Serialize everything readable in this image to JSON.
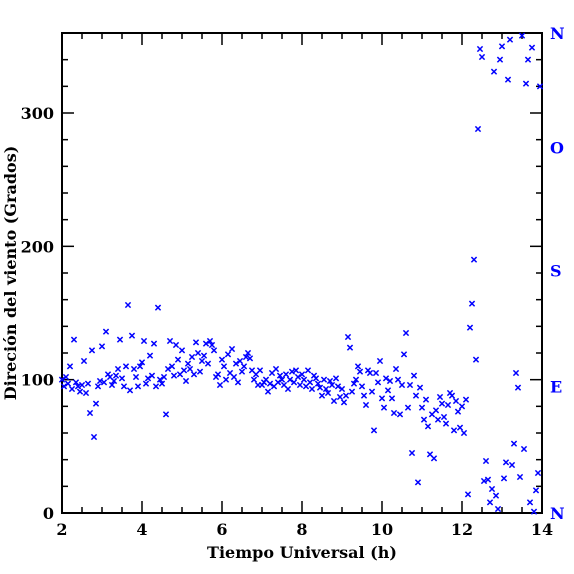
{
  "chart_data": {
    "type": "scatter",
    "xlabel": "Tiempo Universal (h)",
    "ylabel": "Direción del viento (Grados)",
    "xlim": [
      2,
      14
    ],
    "ylim": [
      0,
      360
    ],
    "x_ticks": [
      2,
      4,
      6,
      8,
      10,
      12,
      14
    ],
    "y_ticks": [
      0,
      100,
      200,
      300
    ],
    "x_tick_labels": [
      "2",
      "4",
      "6",
      "8",
      "10",
      "12",
      "14"
    ],
    "y_tick_labels": [
      "0",
      "100",
      "200",
      "300"
    ],
    "right_axis": {
      "labels": [
        {
          "text": "N",
          "value": 0
        },
        {
          "text": "E",
          "value": 95
        },
        {
          "text": "S",
          "value": 182
        },
        {
          "text": "O",
          "value": 274
        },
        {
          "text": "N",
          "value": 360
        }
      ]
    },
    "marker": "x",
    "marker_color": "#0000ff",
    "text_color_right_axis": "#0000ff",
    "series": [
      {
        "points": [
          [
            2.0,
            100
          ],
          [
            2.05,
            95
          ],
          [
            2.1,
            102
          ],
          [
            2.15,
            97
          ],
          [
            2.2,
            110
          ],
          [
            2.25,
            93
          ],
          [
            2.3,
            130
          ],
          [
            2.35,
            98
          ],
          [
            2.4,
            95
          ],
          [
            2.45,
            91
          ],
          [
            2.5,
            96
          ],
          [
            2.55,
            114
          ],
          [
            2.6,
            90
          ],
          [
            2.65,
            97
          ],
          [
            2.7,
            75
          ],
          [
            2.75,
            122
          ],
          [
            2.8,
            57
          ],
          [
            2.85,
            82
          ],
          [
            2.9,
            95
          ],
          [
            2.95,
            99
          ],
          [
            3.0,
            125
          ],
          [
            3.05,
            98
          ],
          [
            3.1,
            136
          ],
          [
            3.15,
            104
          ],
          [
            3.2,
            102
          ],
          [
            3.25,
            96
          ],
          [
            3.3,
            99
          ],
          [
            3.35,
            103
          ],
          [
            3.4,
            108
          ],
          [
            3.45,
            130
          ],
          [
            3.5,
            101
          ],
          [
            3.55,
            95
          ],
          [
            3.6,
            110
          ],
          [
            3.65,
            156
          ],
          [
            3.7,
            92
          ],
          [
            3.75,
            133
          ],
          [
            3.8,
            108
          ],
          [
            3.85,
            102
          ],
          [
            3.9,
            95
          ],
          [
            3.95,
            110
          ],
          [
            4.0,
            113
          ],
          [
            4.05,
            129
          ],
          [
            4.1,
            97
          ],
          [
            4.15,
            101
          ],
          [
            4.2,
            118
          ],
          [
            4.25,
            103
          ],
          [
            4.3,
            127
          ],
          [
            4.35,
            95
          ],
          [
            4.4,
            154
          ],
          [
            4.45,
            100
          ],
          [
            4.5,
            97
          ],
          [
            4.55,
            102
          ],
          [
            4.6,
            74
          ],
          [
            4.65,
            108
          ],
          [
            4.7,
            129
          ],
          [
            4.75,
            110
          ],
          [
            4.8,
            103
          ],
          [
            4.85,
            126
          ],
          [
            4.9,
            115
          ],
          [
            4.95,
            104
          ],
          [
            5.0,
            122
          ],
          [
            5.05,
            107
          ],
          [
            5.1,
            99
          ],
          [
            5.15,
            112
          ],
          [
            5.2,
            108
          ],
          [
            5.25,
            117
          ],
          [
            5.3,
            104
          ],
          [
            5.35,
            128
          ],
          [
            5.4,
            120
          ],
          [
            5.45,
            106
          ],
          [
            5.5,
            114
          ],
          [
            5.55,
            118
          ],
          [
            5.6,
            127
          ],
          [
            5.65,
            112
          ],
          [
            5.7,
            129
          ],
          [
            5.75,
            126
          ],
          [
            5.8,
            122
          ],
          [
            5.85,
            102
          ],
          [
            5.9,
            104
          ],
          [
            5.95,
            96
          ],
          [
            6.0,
            115
          ],
          [
            6.05,
            110
          ],
          [
            6.1,
            100
          ],
          [
            6.15,
            119
          ],
          [
            6.2,
            105
          ],
          [
            6.25,
            123
          ],
          [
            6.3,
            102
          ],
          [
            6.35,
            112
          ],
          [
            6.4,
            98
          ],
          [
            6.45,
            114
          ],
          [
            6.5,
            106
          ],
          [
            6.55,
            110
          ],
          [
            6.6,
            117
          ],
          [
            6.65,
            120
          ],
          [
            6.7,
            116
          ],
          [
            6.75,
            107
          ],
          [
            6.8,
            100
          ],
          [
            6.85,
            104
          ],
          [
            6.9,
            96
          ],
          [
            6.95,
            107
          ],
          [
            7.0,
            96
          ],
          [
            7.05,
            98
          ],
          [
            7.1,
            100
          ],
          [
            7.15,
            91
          ],
          [
            7.2,
            97
          ],
          [
            7.25,
            105
          ],
          [
            7.3,
            95
          ],
          [
            7.35,
            108
          ],
          [
            7.4,
            98
          ],
          [
            7.45,
            103
          ],
          [
            7.5,
            100
          ],
          [
            7.55,
            96
          ],
          [
            7.6,
            104
          ],
          [
            7.65,
            93
          ],
          [
            7.7,
            100
          ],
          [
            7.75,
            106
          ],
          [
            7.8,
            98
          ],
          [
            7.85,
            107
          ],
          [
            7.9,
            102
          ],
          [
            7.95,
            96
          ],
          [
            8.0,
            104
          ],
          [
            8.05,
            100
          ],
          [
            8.1,
            95
          ],
          [
            8.15,
            107
          ],
          [
            8.2,
            98
          ],
          [
            8.25,
            93
          ],
          [
            8.3,
            103
          ],
          [
            8.35,
            101
          ],
          [
            8.4,
            97
          ],
          [
            8.45,
            94
          ],
          [
            8.5,
            88
          ],
          [
            8.55,
            100
          ],
          [
            8.6,
            93
          ],
          [
            8.65,
            90
          ],
          [
            8.7,
            99
          ],
          [
            8.75,
            96
          ],
          [
            8.8,
            84
          ],
          [
            8.85,
            101
          ],
          [
            8.9,
            95
          ],
          [
            8.95,
            87
          ],
          [
            9.0,
            93
          ],
          [
            9.05,
            83
          ],
          [
            9.1,
            88
          ],
          [
            9.15,
            132
          ],
          [
            9.2,
            124
          ],
          [
            9.25,
            91
          ],
          [
            9.3,
            97
          ],
          [
            9.35,
            100
          ],
          [
            9.4,
            110
          ],
          [
            9.45,
            106
          ],
          [
            9.5,
            95
          ],
          [
            9.55,
            88
          ],
          [
            9.6,
            81
          ],
          [
            9.65,
            107
          ],
          [
            9.7,
            105
          ],
          [
            9.75,
            91
          ],
          [
            9.8,
            62
          ],
          [
            9.85,
            105
          ],
          [
            9.9,
            98
          ],
          [
            9.95,
            114
          ],
          [
            10.0,
            86
          ],
          [
            10.05,
            79
          ],
          [
            10.1,
            101
          ],
          [
            10.15,
            92
          ],
          [
            10.2,
            99
          ],
          [
            10.25,
            86
          ],
          [
            10.3,
            75
          ],
          [
            10.35,
            108
          ],
          [
            10.4,
            100
          ],
          [
            10.45,
            74
          ],
          [
            10.5,
            96
          ],
          [
            10.55,
            119
          ],
          [
            10.6,
            135
          ],
          [
            10.65,
            79
          ],
          [
            10.7,
            96
          ],
          [
            10.75,
            45
          ],
          [
            10.8,
            103
          ],
          [
            10.85,
            88
          ],
          [
            10.9,
            23
          ],
          [
            10.95,
            94
          ],
          [
            11.0,
            79
          ],
          [
            11.05,
            70
          ],
          [
            11.1,
            85
          ],
          [
            11.15,
            65
          ],
          [
            11.2,
            44
          ],
          [
            11.25,
            74
          ],
          [
            11.3,
            41
          ],
          [
            11.35,
            77
          ],
          [
            11.4,
            70
          ],
          [
            11.45,
            87
          ],
          [
            11.5,
            82
          ],
          [
            11.55,
            72
          ],
          [
            11.6,
            67
          ],
          [
            11.65,
            81
          ],
          [
            11.7,
            90
          ],
          [
            11.75,
            88
          ],
          [
            11.8,
            62
          ],
          [
            11.85,
            84
          ],
          [
            11.9,
            76
          ],
          [
            11.95,
            64
          ],
          [
            12.0,
            80
          ],
          [
            12.05,
            60
          ],
          [
            12.1,
            85
          ],
          [
            12.15,
            14
          ],
          [
            12.2,
            139
          ],
          [
            12.25,
            157
          ],
          [
            12.3,
            190
          ],
          [
            12.35,
            115
          ],
          [
            12.4,
            288
          ],
          [
            12.45,
            348
          ],
          [
            12.5,
            342
          ],
          [
            12.55,
            24
          ],
          [
            12.6,
            39
          ],
          [
            12.65,
            25
          ],
          [
            12.7,
            8
          ],
          [
            12.75,
            18
          ],
          [
            12.8,
            331
          ],
          [
            12.85,
            13
          ],
          [
            12.9,
            3
          ],
          [
            12.95,
            340
          ],
          [
            13.0,
            350
          ],
          [
            13.05,
            26
          ],
          [
            13.1,
            38
          ],
          [
            13.15,
            325
          ],
          [
            13.2,
            355
          ],
          [
            13.25,
            36
          ],
          [
            13.3,
            52
          ],
          [
            13.35,
            105
          ],
          [
            13.4,
            94
          ],
          [
            13.45,
            27
          ],
          [
            13.5,
            358
          ],
          [
            13.55,
            48
          ],
          [
            13.6,
            322
          ],
          [
            13.65,
            340
          ],
          [
            13.7,
            8
          ],
          [
            13.75,
            349
          ],
          [
            13.8,
            1
          ],
          [
            13.85,
            17
          ],
          [
            13.9,
            30
          ],
          [
            13.95,
            320
          ]
        ]
      }
    ]
  }
}
